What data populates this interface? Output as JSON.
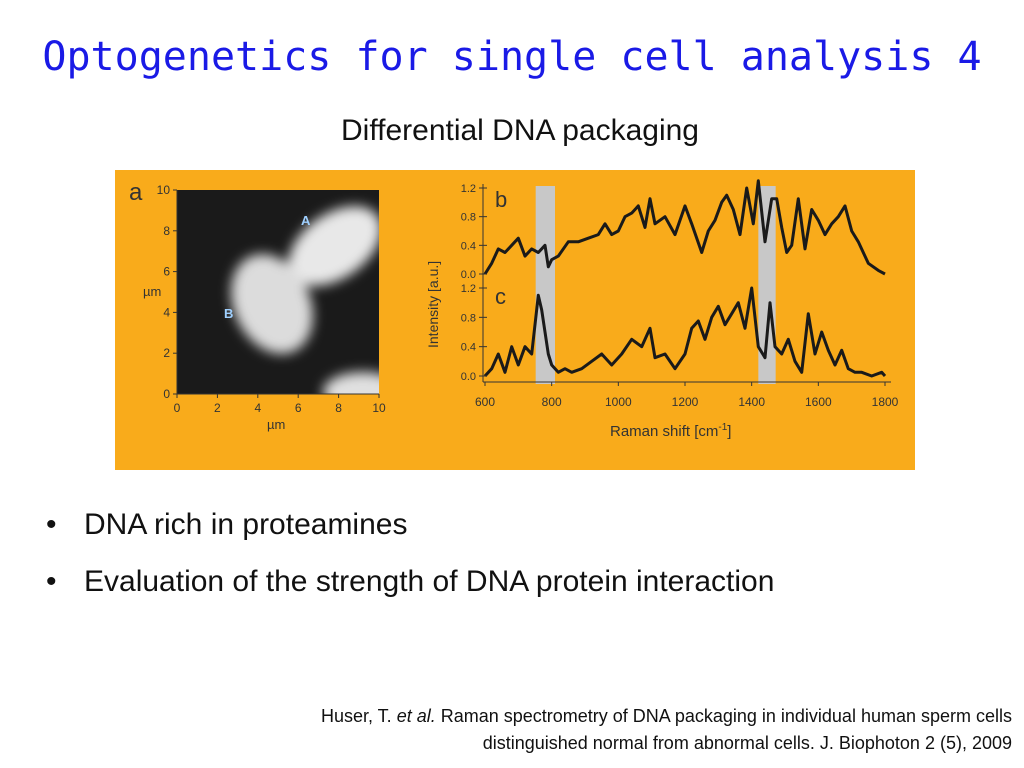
{
  "title": "Optogenetics for single cell analysis 4",
  "subtitle": "Differential DNA packaging",
  "figure": {
    "background_color": "#f9ab1b",
    "panel_a": {
      "label": "a",
      "y_ticks": [
        "10",
        "8",
        "6",
        "4",
        "2",
        "0"
      ],
      "x_ticks": [
        "0",
        "2",
        "4",
        "6",
        "8",
        "10"
      ],
      "y_unit": "µm",
      "x_unit": "µm",
      "cell_labels": [
        "A",
        "B"
      ]
    },
    "panel_bc": {
      "label_b": "b",
      "label_c": "c",
      "y_ticks": [
        "1.2",
        "0.8",
        "0.4",
        "0.0"
      ],
      "ylabel": "Intensity [a.u.]",
      "xlabel": "Raman shift [cm",
      "xlabel_sup": "-1",
      "xlabel_end": "]",
      "x_ticks": [
        "600",
        "800",
        "1000",
        "1200",
        "1400",
        "1600",
        "1800"
      ]
    }
  },
  "chart_data": {
    "type": "line",
    "xlabel": "Raman shift [cm-1]",
    "ylabel": "Intensity [a.u.]",
    "xlim": [
      600,
      1810
    ],
    "ylim": [
      0,
      1.3
    ],
    "highlight_bands": [
      [
        752,
        810
      ],
      [
        1420,
        1472
      ]
    ],
    "series": [
      {
        "x": [
          600,
          620,
          640,
          660,
          680,
          700,
          720,
          740,
          760,
          780,
          790,
          800,
          820,
          850,
          880,
          910,
          940,
          960,
          980,
          1000,
          1020,
          1040,
          1060,
          1080,
          1095,
          1110,
          1140,
          1170,
          1200,
          1220,
          1250,
          1270,
          1290,
          1310,
          1325,
          1345,
          1365,
          1385,
          1405,
          1420,
          1440,
          1460,
          1475,
          1490,
          1505,
          1520,
          1540,
          1560,
          1580,
          1600,
          1620,
          1640,
          1660,
          1680,
          1700,
          1720,
          1750,
          1780,
          1800
        ],
        "values": [
          0.0,
          0.15,
          0.35,
          0.3,
          0.4,
          0.5,
          0.25,
          0.35,
          0.3,
          0.4,
          0.1,
          0.2,
          0.25,
          0.45,
          0.45,
          0.5,
          0.55,
          0.7,
          0.55,
          0.6,
          0.8,
          0.85,
          0.95,
          0.65,
          1.05,
          0.7,
          0.8,
          0.55,
          0.95,
          0.7,
          0.3,
          0.6,
          0.75,
          1.0,
          1.1,
          0.9,
          0.55,
          1.2,
          0.7,
          1.3,
          0.45,
          1.05,
          1.05,
          0.65,
          0.3,
          0.4,
          1.05,
          0.35,
          0.9,
          0.75,
          0.55,
          0.7,
          0.8,
          0.95,
          0.6,
          0.45,
          0.15,
          0.05,
          0.0
        ]
      },
      {
        "x": [
          600,
          620,
          640,
          660,
          680,
          700,
          720,
          740,
          760,
          770,
          780,
          790,
          800,
          820,
          840,
          860,
          890,
          920,
          950,
          980,
          1010,
          1040,
          1070,
          1095,
          1110,
          1140,
          1170,
          1200,
          1220,
          1240,
          1260,
          1280,
          1300,
          1320,
          1340,
          1360,
          1380,
          1400,
          1420,
          1440,
          1455,
          1470,
          1490,
          1510,
          1530,
          1550,
          1570,
          1590,
          1610,
          1630,
          1650,
          1670,
          1690,
          1710,
          1730,
          1760,
          1790,
          1800
        ],
        "values": [
          0.0,
          0.1,
          0.3,
          0.05,
          0.4,
          0.15,
          0.4,
          0.3,
          1.1,
          0.9,
          0.6,
          0.3,
          0.15,
          0.05,
          0.1,
          0.05,
          0.1,
          0.2,
          0.3,
          0.15,
          0.3,
          0.5,
          0.4,
          0.65,
          0.25,
          0.3,
          0.1,
          0.3,
          0.65,
          0.75,
          0.5,
          0.8,
          0.95,
          0.7,
          0.85,
          1.0,
          0.65,
          1.2,
          0.4,
          0.25,
          1.0,
          0.4,
          0.3,
          0.5,
          0.2,
          0.05,
          0.85,
          0.3,
          0.6,
          0.35,
          0.15,
          0.35,
          0.1,
          0.05,
          0.05,
          0.0,
          0.05,
          0.0
        ]
      }
    ]
  },
  "bullets": [
    {
      "marker": "•",
      "text": "DNA rich in proteamines"
    },
    {
      "marker": "•",
      "text": "Evaluation of the strength of DNA protein interaction"
    }
  ],
  "citation": {
    "author": "Huser, T.",
    "etal": "et al.",
    "line1_rest": "Raman spectrometry of DNA packaging in individual human sperm cells",
    "line2": "distinguished normal from abnormal cells. J. Biophoton 2 (5), 2009"
  }
}
